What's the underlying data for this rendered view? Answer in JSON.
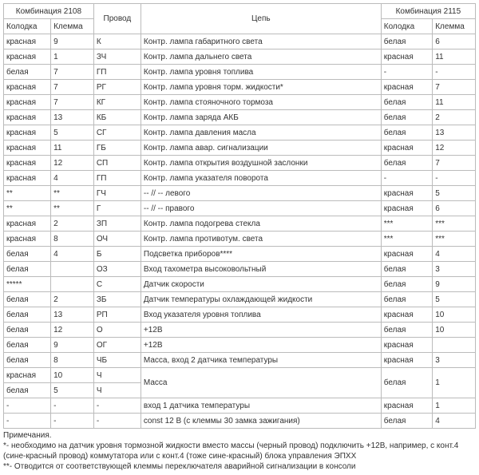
{
  "headers": {
    "group1": "Комбинация 2108",
    "kolodka": "Колодка",
    "klemma": "Клемма",
    "provod": "Провод",
    "cep": "Цепь",
    "group2": "Комбинация 2115"
  },
  "rows": [
    [
      "красная",
      "9",
      "К",
      "Контр. лампа габаритного света",
      "белая",
      "6"
    ],
    [
      "красная",
      "1",
      "ЗЧ",
      "Контр. лампа дальнего света",
      "красная",
      "11"
    ],
    [
      "белая",
      "7",
      "ГП",
      "Контр. лампа уровня топлива",
      "-",
      "-"
    ],
    [
      "красная",
      "7",
      "РГ",
      "Контр. лампа уровня торм. жидкости*",
      "красная",
      "7"
    ],
    [
      "красная",
      "7",
      "КГ",
      "Контр. лампа стояночного тормоза",
      "белая",
      "11"
    ],
    [
      "красная",
      "13",
      "КБ",
      "Контр. лампа заряда АКБ",
      "белая",
      "2"
    ],
    [
      "красная",
      "5",
      "СГ",
      "Контр. лампа давления масла",
      "белая",
      "13"
    ],
    [
      "красная",
      "11",
      "ГБ",
      "Контр. лампа авар. сигнализации",
      "красная",
      "12"
    ],
    [
      "красная",
      "12",
      "СП",
      "Контр. лампа открытия воздушной заслонки",
      "белая",
      "7"
    ],
    [
      "красная",
      "4",
      "ГП",
      "Контр. лампа указателя поворота",
      "-",
      "-"
    ],
    [
      "**",
      "**",
      "ГЧ",
      "-- // -- левого",
      "красная",
      "5"
    ],
    [
      "**",
      "**",
      "Г",
      "-- // -- правого",
      "красная",
      "6"
    ],
    [
      "красная",
      "2",
      "ЗП",
      "Контр. лампа подогрева стекла",
      "***",
      "***"
    ],
    [
      "красная",
      "8",
      "ОЧ",
      "Контр. лампа противотум. света",
      "***",
      "***"
    ],
    [
      "белая",
      "4",
      "Б",
      "Подсветка приборов****",
      "красная",
      "4"
    ],
    [
      "белая",
      " ",
      "ОЗ",
      "Вход тахометра высоковольтный",
      "белая",
      "3"
    ],
    [
      "*****",
      " ",
      "С",
      "Датчик скорости",
      "белая",
      "9"
    ],
    [
      "белая",
      "2",
      "ЗБ",
      "Датчик температуры охлаждающей жидкости",
      "белая",
      "5"
    ],
    [
      "белая",
      "13",
      "РП",
      "Вход указателя уровня топлива",
      "красная",
      "10"
    ],
    [
      "белая",
      "12",
      "О",
      "+12В",
      "белая",
      "10"
    ],
    [
      "белая",
      "9",
      "ОГ",
      "+12В",
      "красная",
      " "
    ],
    [
      "белая",
      "8",
      "ЧБ",
      "Масса, вход 2 датчика температуры",
      "красная",
      "3"
    ]
  ],
  "massaRows": {
    "r1": [
      "красная",
      "10",
      "Ч"
    ],
    "r2": [
      "белая",
      "5",
      "Ч"
    ],
    "massa": "Масса",
    "right": [
      "белая",
      "1"
    ]
  },
  "tailRows": [
    [
      "-",
      "-",
      "-",
      "вход 1 датчика температуры",
      "красная",
      "1"
    ],
    [
      "-",
      "-",
      "-",
      "const 12 В (с клеммы 30 замка зажигания)",
      "белая",
      "4"
    ]
  ],
  "notes": {
    "title": "Примечания.",
    "n1": "*- необходимо на датчик уровня тормозной жидкости вместо массы (черный провод) подключить +12В, например, с конт.4 (сине-красный провод) коммутатора или с конт.4 (тоже сине-красный) блока управления ЭПХХ",
    "n2": "**- Отводится от соответствующей клеммы переключателя аварийной сигнализации в консоли"
  }
}
